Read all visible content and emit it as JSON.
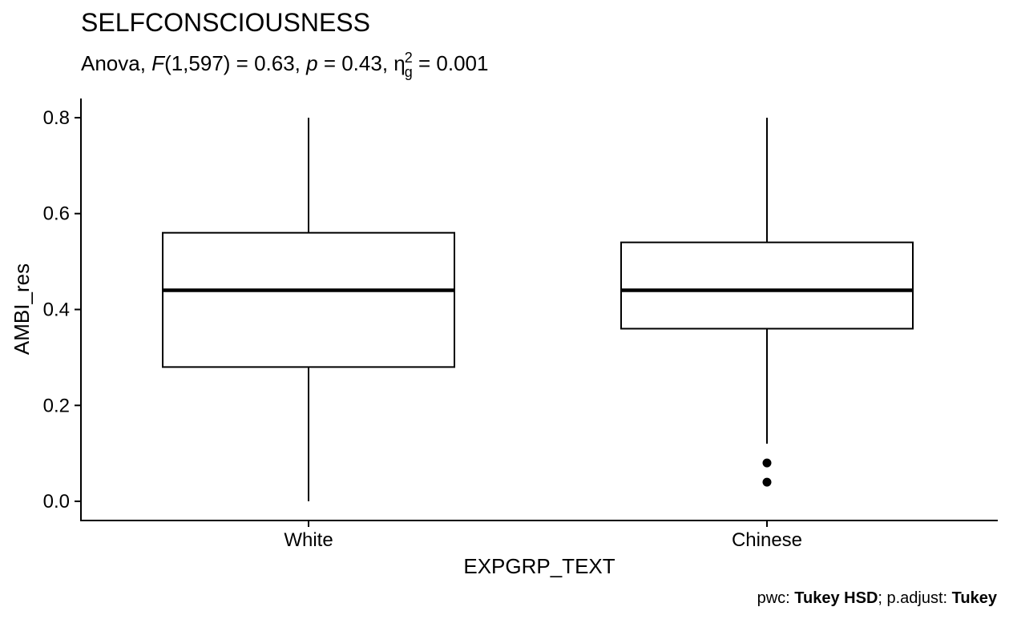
{
  "chart_data": {
    "type": "boxplot",
    "title": "SELFCONSCIOUSNESS",
    "subtitle": {
      "prefix": "Anova, ",
      "f_symbol": "F",
      "f_args": "(1,597) = 0.63, ",
      "p_symbol": "p",
      "p_value": " = 0.43, ",
      "eta_symbol": "η",
      "eta_sub": "g",
      "eta_sup": "2",
      "eta_value": " = 0.001"
    },
    "xlabel": "EXPGRP_TEXT",
    "ylabel": "AMBI_res",
    "ylim": [
      -0.04,
      0.84
    ],
    "yticks": [
      0.0,
      0.2,
      0.4,
      0.6,
      0.8
    ],
    "ytick_labels": [
      "0.0",
      "0.2",
      "0.4",
      "0.6",
      "0.8"
    ],
    "categories": [
      "White",
      "Chinese"
    ],
    "boxes": [
      {
        "category": "White",
        "whisker_low": 0.0,
        "q1": 0.28,
        "median": 0.44,
        "q3": 0.56,
        "whisker_high": 0.8,
        "outliers": []
      },
      {
        "category": "Chinese",
        "whisker_low": 0.12,
        "q1": 0.36,
        "median": 0.44,
        "q3": 0.54,
        "whisker_high": 0.8,
        "outliers": [
          0.08,
          0.04
        ]
      }
    ],
    "grid": false,
    "legend": "none",
    "caption": {
      "pwc_label": "pwc: ",
      "pwc_value": "Tukey HSD",
      "padj_label": "; p.adjust: ",
      "padj_value": "Tukey"
    }
  }
}
